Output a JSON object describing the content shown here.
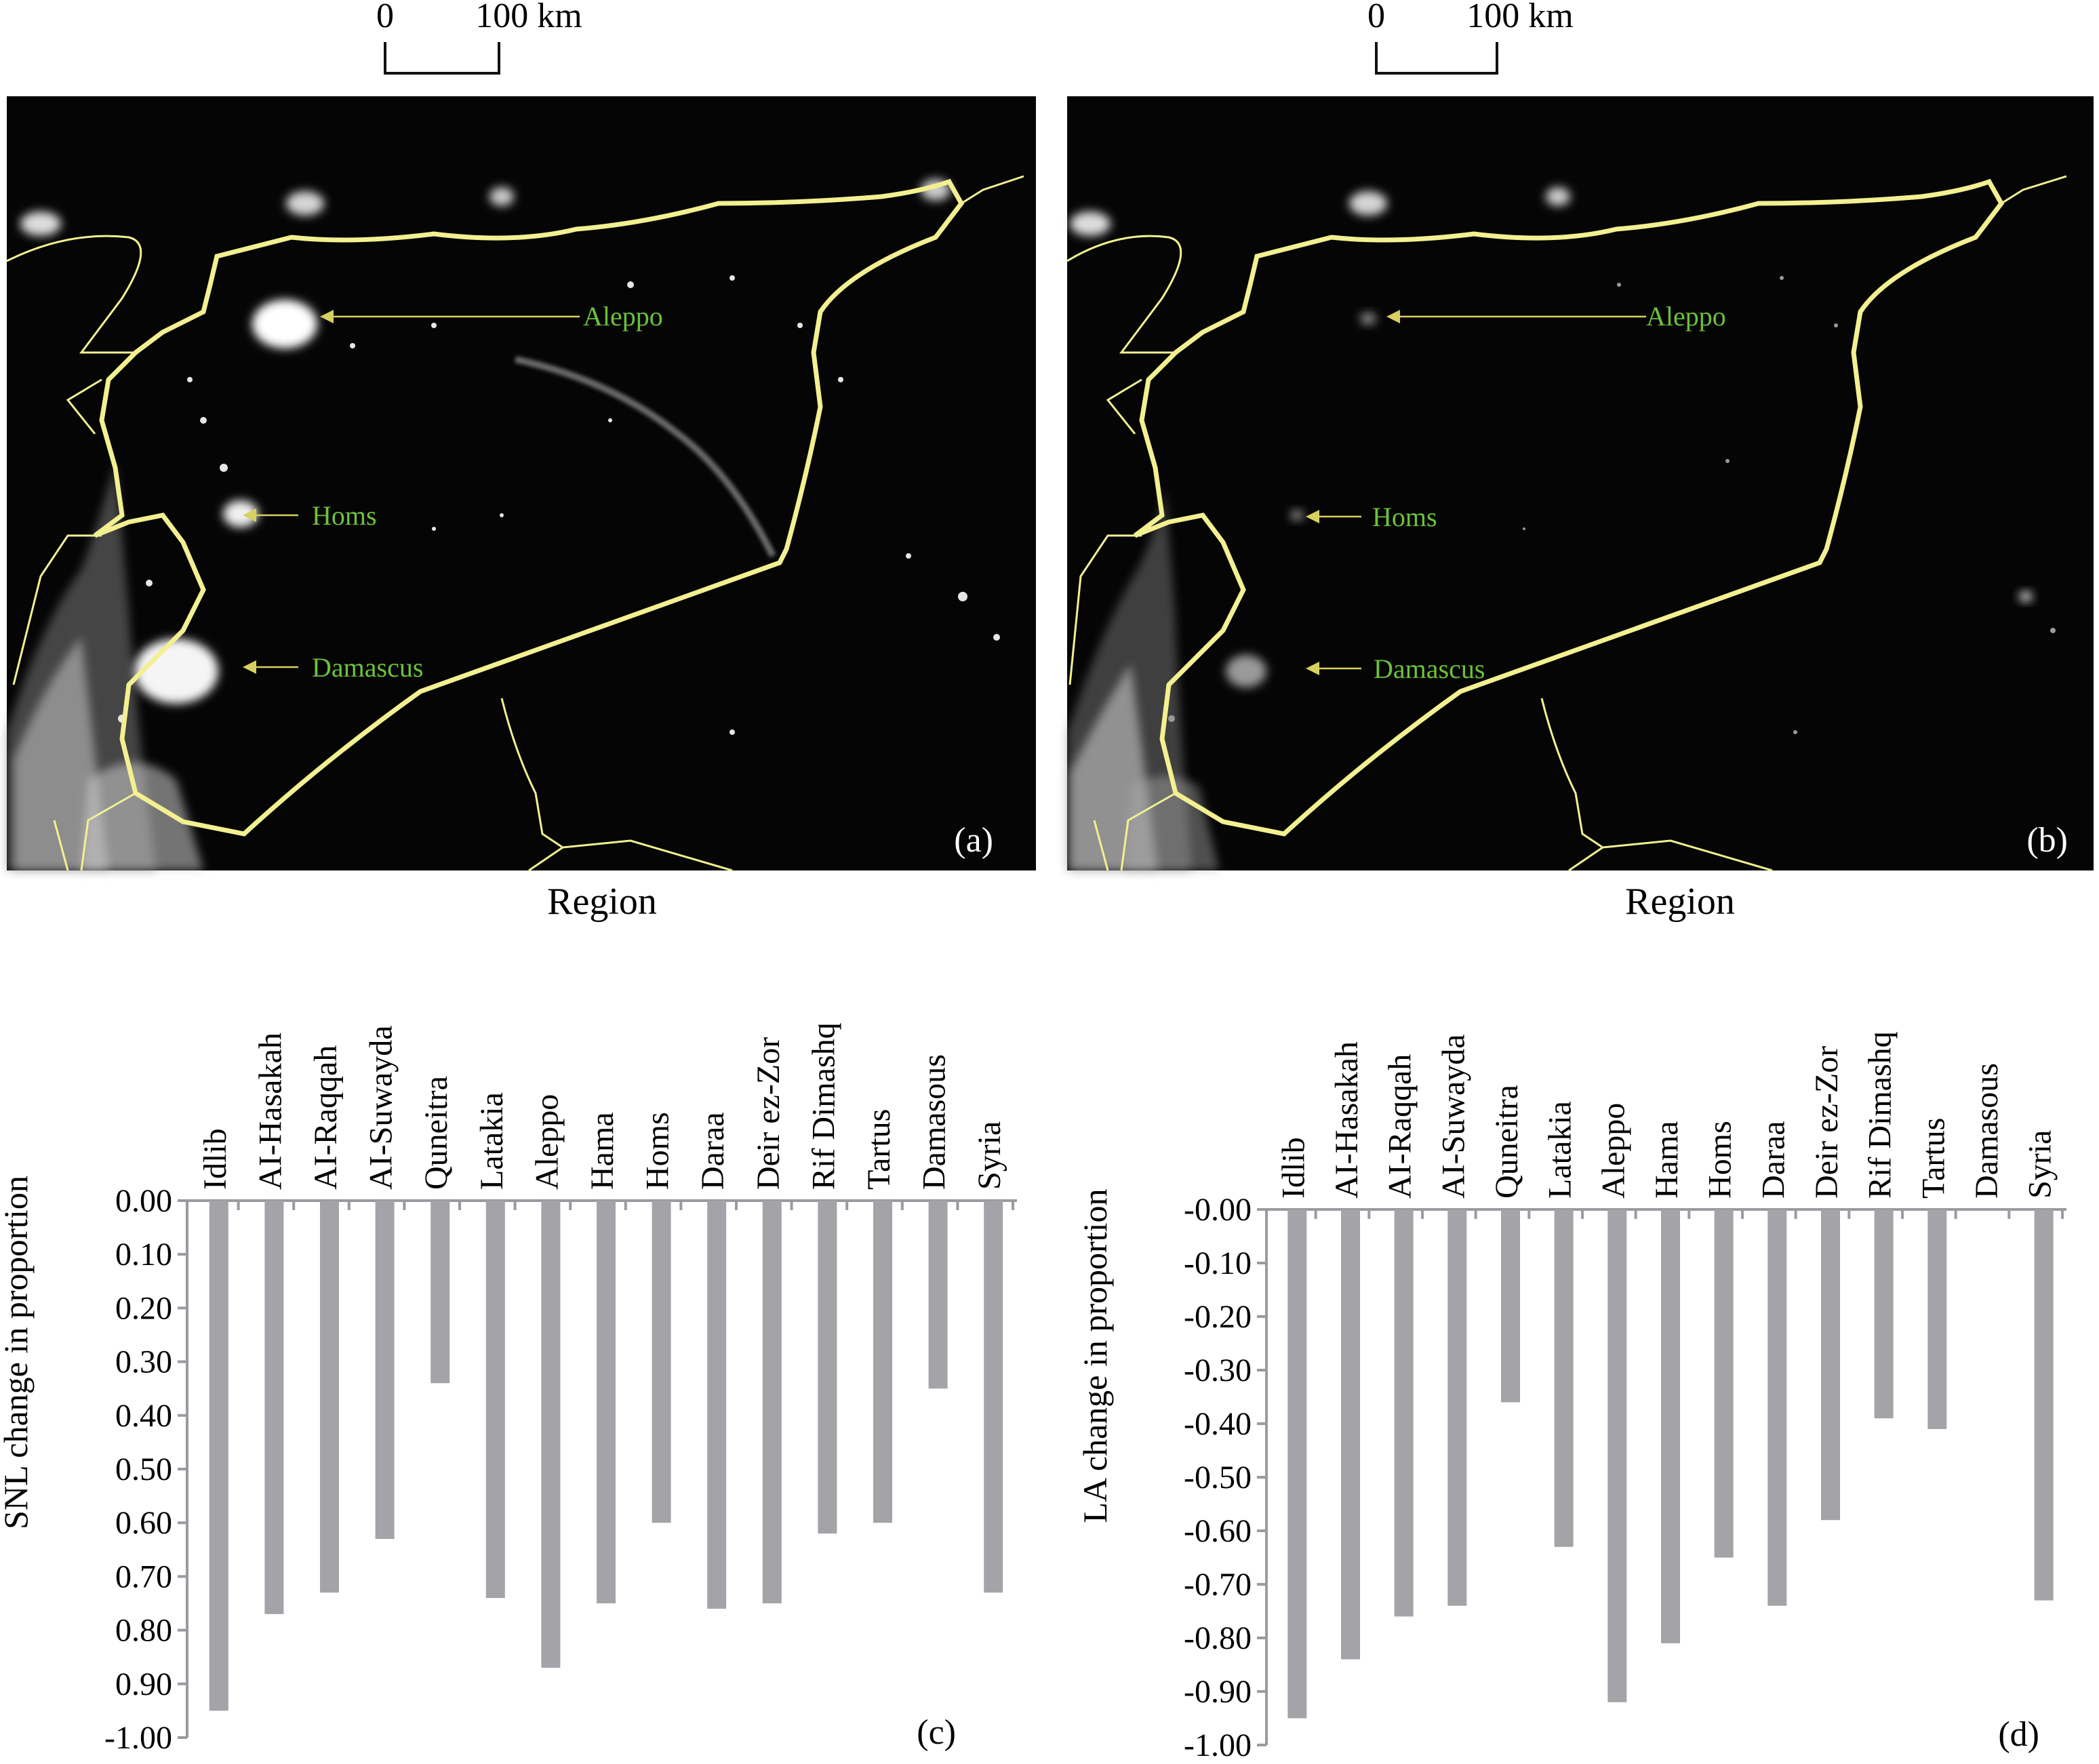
{
  "scale_bar": {
    "start_label": "0",
    "end_label": "100 km"
  },
  "maps": [
    {
      "panel_label": "(a)",
      "xlabel": "Region",
      "cities": [
        {
          "name": "Aleppo",
          "brightness": "high"
        },
        {
          "name": "Homs",
          "brightness": "high"
        },
        {
          "name": "Damascus",
          "brightness": "high"
        }
      ]
    },
    {
      "panel_label": "(b)",
      "xlabel": "Region",
      "cities": [
        {
          "name": "Aleppo",
          "brightness": "low"
        },
        {
          "name": "Homs",
          "brightness": "low"
        },
        {
          "name": "Damascus",
          "brightness": "low"
        }
      ]
    }
  ],
  "colors": {
    "map_background": "#050505",
    "border": "#f2f090",
    "city_label": "#6cc23a",
    "arrow": "#d8d060",
    "bar": "#a3a3a8"
  },
  "chart_data": [
    {
      "type": "bar",
      "panel_label": "(c)",
      "ylabel": "SNL change in proportion",
      "categories": [
        "Idlib",
        "AI-Hasakah",
        "AI-Raqqah",
        "AI-Suwayda",
        "Quneitra",
        "Latakia",
        "Aleppo",
        "Hama",
        "Homs",
        "Daraa",
        "Deir ez-Zor",
        "Rif Dimashq",
        "Tartus",
        "Damasous",
        "Syria"
      ],
      "values": [
        -0.95,
        -0.77,
        -0.73,
        -0.63,
        -0.34,
        -0.74,
        -0.87,
        -0.75,
        -0.6,
        -0.76,
        -0.75,
        -0.62,
        -0.6,
        -0.35,
        -0.73
      ],
      "yticks": [
        "0.00",
        "0.10",
        "0.20",
        "0.30",
        "0.40",
        "0.50",
        "0.60",
        "0.70",
        "0.80",
        "0.90",
        "-1.00"
      ],
      "ylim": [
        -1.0,
        0.0
      ]
    },
    {
      "type": "bar",
      "panel_label": "(d)",
      "ylabel": "LA change in proportion",
      "categories": [
        "Idlib",
        "AI-Hasakah",
        "AI-Raqqah",
        "AI-Suwayda",
        "Quneitra",
        "Latakia",
        "Aleppo",
        "Hama",
        "Homs",
        "Daraa",
        "Deir ez-Zor",
        "Rif Dimashq",
        "Tartus",
        "Damasous",
        "Syria"
      ],
      "values": [
        -0.95,
        -0.84,
        -0.76,
        -0.74,
        -0.36,
        -0.63,
        -0.92,
        -0.81,
        -0.65,
        -0.74,
        -0.58,
        -0.39,
        -0.41,
        0.0,
        -0.73
      ],
      "yticks": [
        "-0.00",
        "-0.10",
        "-0.20",
        "-0.30",
        "-0.40",
        "-0.50",
        "-0.60",
        "-0.70",
        "-0.80",
        "-0.90",
        "-1.00"
      ],
      "ylim": [
        -1.0,
        0.0
      ]
    }
  ]
}
